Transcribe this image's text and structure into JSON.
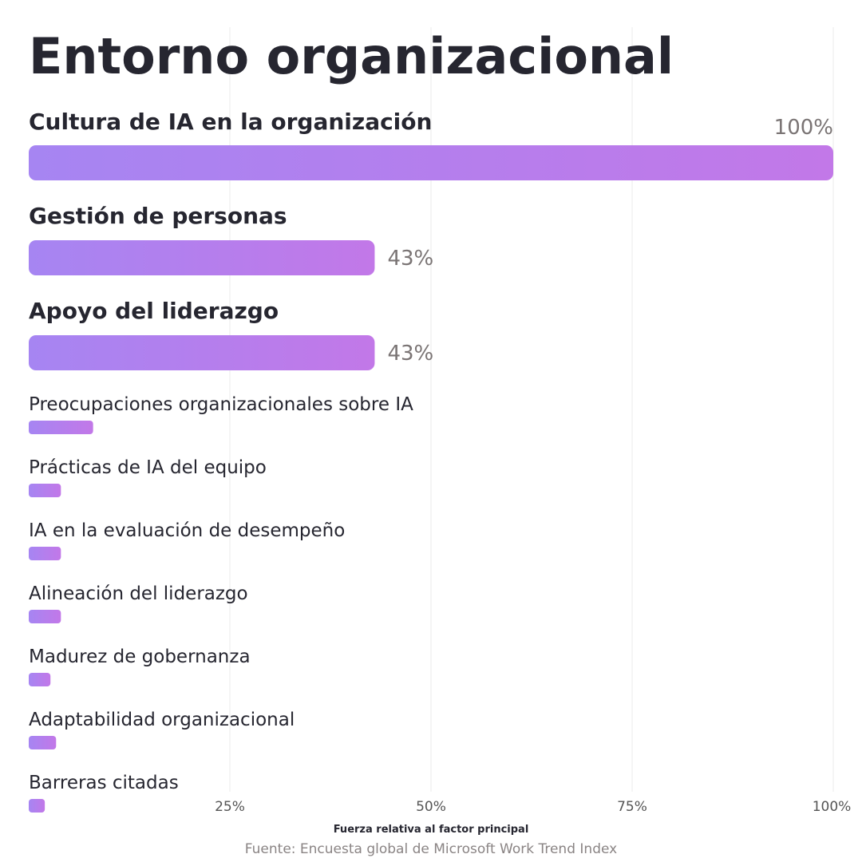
{
  "title": "Entorno organizacional",
  "source": "Fuente: Encuesta global de Microsoft Work Trend Index",
  "colors": {
    "bar_start": "#a685f2",
    "bar_end": "#c278e8",
    "label_gray": "#7a7474",
    "grid": "#ebebeb"
  },
  "chart_data": {
    "type": "bar",
    "orientation": "horizontal",
    "title": "Entorno organizacional",
    "xlabel": "Fuerza relativa al factor principal",
    "ylabel": "",
    "xlim": [
      0,
      100
    ],
    "xticks": [
      "25%",
      "50%",
      "75%",
      "100%"
    ],
    "grid": true,
    "categories": [
      "Cultura de IA en la organización",
      "Gestión de personas",
      "Apoyo del liderazgo",
      "Preocupaciones organizacionales sobre IA",
      "Prácticas de IA del equipo",
      "IA en la evaluación de desempeño",
      "Alineación del liderazgo",
      "Madurez de gobernanza",
      "Adaptabilidad organizacional",
      "Barreras citadas"
    ],
    "values": [
      100,
      43,
      43,
      8,
      4,
      4,
      4,
      2.7,
      3.4,
      2
    ],
    "value_labels": [
      "100%",
      "43%",
      "43%",
      "",
      "",
      "",
      "",
      "",
      "",
      ""
    ],
    "emphasized": [
      true,
      true,
      true,
      false,
      false,
      false,
      false,
      false,
      false,
      false
    ]
  }
}
